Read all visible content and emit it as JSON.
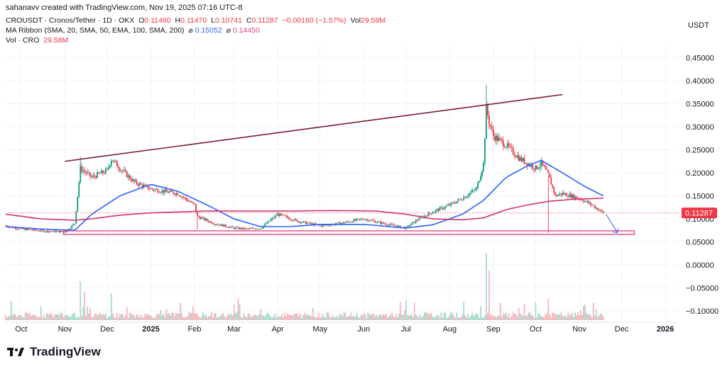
{
  "header": {
    "author_line": "sahanavv created with TradingView.com, Nov 19, 2025 07:16 UTC-8"
  },
  "legend": {
    "symbol": "CROUSDT · Cronos/Tether · 1D · OKX",
    "open_label": "O",
    "open": "0.11460",
    "high_label": "H",
    "high": "0.11470",
    "low_label": "L",
    "low": "0.10741",
    "close_label": "C",
    "close": "0.11287",
    "change": "−0.00180 (−1.57%)",
    "vol_label": "Vol",
    "vol": "29.58M",
    "ma_name": "MA Ribbon (SMA, 20, SMA, 50, EMA, 100, SMA, 200)",
    "ma_sym1": "⌀",
    "ma_val1": "0.15052",
    "ma_sym2": "⌀",
    "ma_val2": "0.14450",
    "vol_line_label": "Vol · CRO",
    "vol_line_val": "29.58M"
  },
  "axis": {
    "currency": "USDT"
  },
  "price_tag": "0.11287",
  "footer": {
    "brand": "TradingView"
  },
  "colors": {
    "up": "#089981",
    "down": "#f23645",
    "ma_blue": "#2962ff",
    "ma_pink": "#d6336c",
    "trendline": "#7b1e2e",
    "box": "#e0457b",
    "vol_up": "#a8d8cc",
    "vol_down": "#f4b6bb"
  },
  "chart_data": {
    "type": "candlestick",
    "y_axis": {
      "ticks": [
        "0.45000",
        "0.40000",
        "0.35000",
        "0.30000",
        "0.25000",
        "0.20000",
        "0.15000",
        "0.10000",
        "0.05000",
        "0.00000",
        "−0.05000",
        "−0.10000"
      ],
      "tick_values": [
        0.45,
        0.4,
        0.35,
        0.3,
        0.25,
        0.2,
        0.15,
        0.1,
        0.05,
        0.0,
        -0.05,
        -0.1
      ],
      "range": [
        -0.12,
        0.48
      ]
    },
    "x_axis": {
      "labels": [
        "Oct",
        "Nov",
        "Dec",
        "2025",
        "Feb",
        "Mar",
        "Apr",
        "May",
        "Jun",
        "Jul",
        "Aug",
        "Sep",
        "Oct",
        "Nov",
        "Dec",
        "2026"
      ],
      "bold": [
        "2025",
        "2026"
      ],
      "label_dates": [
        "2024-10-01",
        "2024-11-01",
        "2024-12-01",
        "2025-01-01",
        "2025-02-01",
        "2025-03-01",
        "2025-04-01",
        "2025-05-01",
        "2025-06-01",
        "2025-07-01",
        "2025-08-01",
        "2025-09-01",
        "2025-10-01",
        "2025-11-01",
        "2025-12-01",
        "2026-01-01"
      ]
    },
    "series": [
      {
        "kind": "price",
        "x": [
          "2024-09-20",
          "2024-10-01",
          "2024-10-15",
          "2024-11-01",
          "2024-11-08",
          "2024-11-12",
          "2024-11-20",
          "2024-12-01",
          "2024-12-04",
          "2024-12-10",
          "2024-12-20",
          "2025-01-01",
          "2025-01-10",
          "2025-01-20",
          "2025-02-01",
          "2025-02-03",
          "2025-02-15",
          "2025-03-01",
          "2025-03-10",
          "2025-03-20",
          "2025-04-01",
          "2025-04-15",
          "2025-05-01",
          "2025-05-15",
          "2025-06-01",
          "2025-06-15",
          "2025-07-01",
          "2025-07-10",
          "2025-07-20",
          "2025-08-01",
          "2025-08-10",
          "2025-08-20",
          "2025-08-25",
          "2025-08-27",
          "2025-08-29",
          "2025-09-01",
          "2025-09-10",
          "2025-09-20",
          "2025-10-01",
          "2025-10-05",
          "2025-10-10",
          "2025-10-15",
          "2025-10-20",
          "2025-11-01",
          "2025-11-10",
          "2025-11-18"
        ],
        "values": [
          0.085,
          0.078,
          0.074,
          0.072,
          0.09,
          0.21,
          0.19,
          0.205,
          0.23,
          0.21,
          0.18,
          0.165,
          0.16,
          0.155,
          0.13,
          0.105,
          0.09,
          0.08,
          0.078,
          0.08,
          0.11,
          0.095,
          0.085,
          0.09,
          0.1,
          0.09,
          0.08,
          0.1,
          0.115,
          0.13,
          0.145,
          0.165,
          0.22,
          0.34,
          0.31,
          0.28,
          0.26,
          0.23,
          0.21,
          0.22,
          0.195,
          0.15,
          0.155,
          0.145,
          0.13,
          0.113
        ]
      },
      {
        "name": "SMA 20 / MA ribbon fast",
        "kind": "line",
        "x": [
          "2024-09-20",
          "2024-10-15",
          "2024-11-08",
          "2024-11-20",
          "2024-12-10",
          "2025-01-01",
          "2025-01-20",
          "2025-02-10",
          "2025-03-01",
          "2025-03-20",
          "2025-04-10",
          "2025-05-01",
          "2025-06-01",
          "2025-07-01",
          "2025-07-20",
          "2025-08-10",
          "2025-08-25",
          "2025-09-10",
          "2025-09-25",
          "2025-10-05",
          "2025-10-20",
          "2025-11-05",
          "2025-11-18"
        ],
        "values": [
          0.083,
          0.078,
          0.075,
          0.11,
          0.15,
          0.175,
          0.16,
          0.13,
          0.1,
          0.083,
          0.083,
          0.088,
          0.088,
          0.08,
          0.087,
          0.11,
          0.14,
          0.19,
          0.215,
          0.227,
          0.2,
          0.17,
          0.15
        ]
      },
      {
        "name": "SMA 200 / MA ribbon slow",
        "kind": "line",
        "x": [
          "2024-09-20",
          "2024-10-15",
          "2024-11-08",
          "2024-11-20",
          "2024-12-10",
          "2025-01-01",
          "2025-01-20",
          "2025-02-10",
          "2025-03-10",
          "2025-04-10",
          "2025-05-10",
          "2025-06-10",
          "2025-07-01",
          "2025-07-20",
          "2025-08-10",
          "2025-08-25",
          "2025-09-10",
          "2025-09-25",
          "2025-10-10",
          "2025-10-25",
          "2025-11-18"
        ],
        "values": [
          0.11,
          0.1,
          0.097,
          0.1,
          0.108,
          0.113,
          0.115,
          0.117,
          0.117,
          0.117,
          0.118,
          0.117,
          0.11,
          0.1,
          0.098,
          0.102,
          0.12,
          0.13,
          0.138,
          0.142,
          0.145
        ]
      },
      {
        "name": "Volume",
        "kind": "volume",
        "x": [
          "2024-11-12",
          "2024-11-15",
          "2024-12-04",
          "2025-03-01",
          "2025-03-04",
          "2025-07-01",
          "2025-08-27",
          "2025-08-29",
          "2025-10-10",
          "2025-11-05"
        ],
        "values": [
          55,
          40,
          38,
          22,
          30,
          28,
          95,
          70,
          30,
          22
        ]
      }
    ],
    "annotations": [
      {
        "type": "trendline",
        "from": [
          "2024-11-01",
          0.225
        ],
        "to": [
          "2025-10-20",
          0.37
        ]
      },
      {
        "type": "box",
        "from": [
          "2024-10-31",
          0.074
        ],
        "to": [
          "2025-12-10",
          0.066
        ]
      },
      {
        "type": "arrow",
        "from": [
          "2025-11-20",
          0.11
        ],
        "to": [
          "2025-11-28",
          0.07
        ]
      }
    ]
  }
}
